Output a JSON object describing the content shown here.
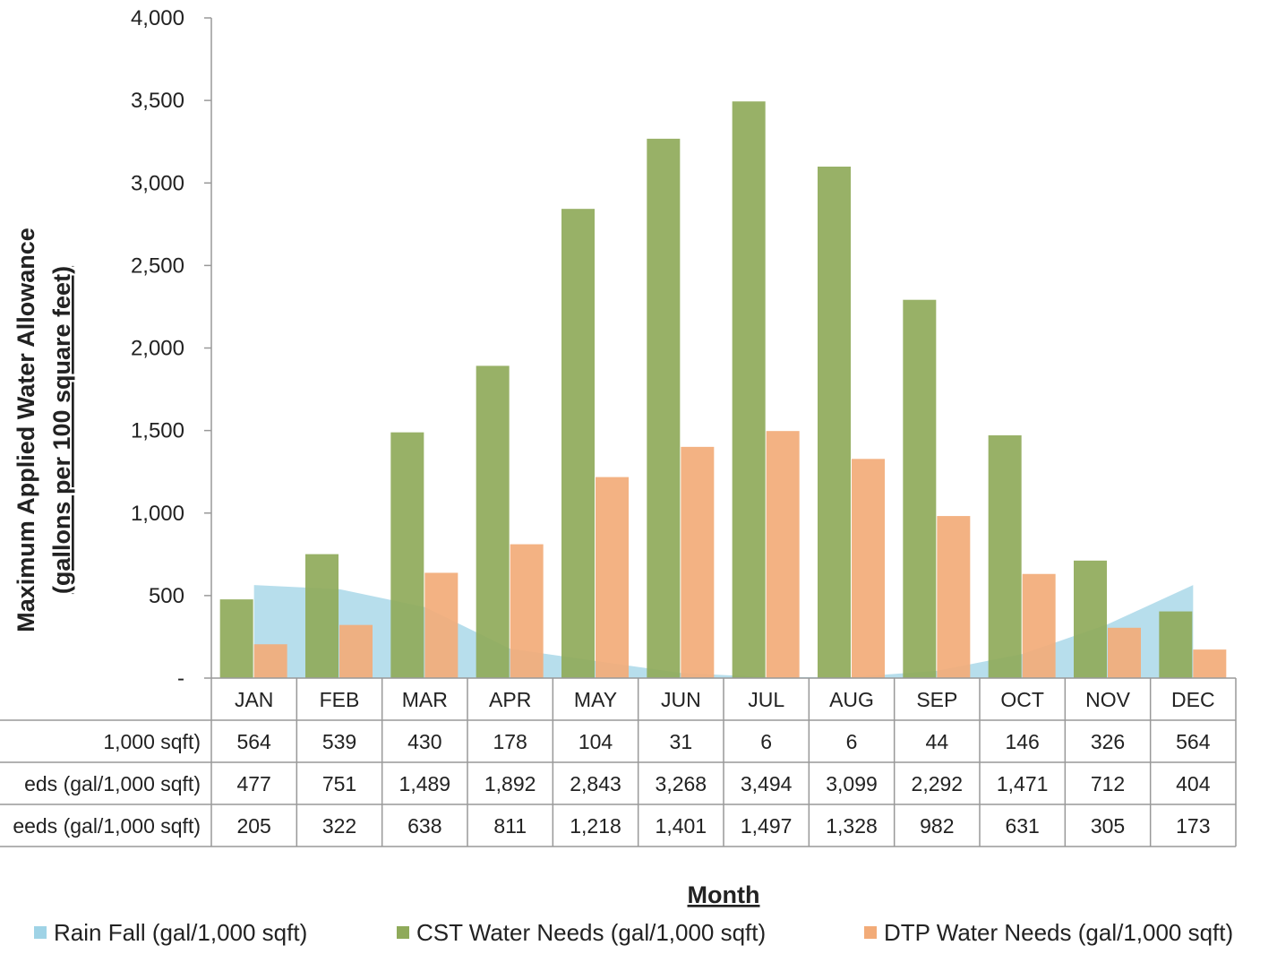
{
  "chart_data": {
    "type": "bar",
    "ylabel_line1": "Maximum Applied Water Allowance",
    "ylabel_line2": "(gallons per 100 square feet)",
    "xlabel": "Month",
    "ylim": [
      0,
      4000
    ],
    "y_ticks": [
      {
        "value": 4000,
        "label": "4,000"
      },
      {
        "value": 3500,
        "label": "3,500"
      },
      {
        "value": 3000,
        "label": "3,000"
      },
      {
        "value": 2500,
        "label": "2,500"
      },
      {
        "value": 2000,
        "label": "2,000"
      },
      {
        "value": 1500,
        "label": "1,500"
      },
      {
        "value": 1000,
        "label": "1,000"
      },
      {
        "value": 500,
        "label": "500"
      },
      {
        "value": 0,
        "label": "-"
      }
    ],
    "grid": false,
    "legend_position": "bottom",
    "categories": [
      "JAN",
      "FEB",
      "MAR",
      "APR",
      "MAY",
      "JUN",
      "JUL",
      "AUG",
      "SEP",
      "OCT",
      "NOV",
      "DEC"
    ],
    "series": [
      {
        "name": "Rain Fall (gal/1,000 sqft)",
        "table_label": "1,000 sqft)",
        "kind": "area",
        "color": "#9fd3e6",
        "values": [
          564,
          539,
          430,
          178,
          104,
          31,
          6,
          6,
          44,
          146,
          326,
          564
        ],
        "labels": [
          "564",
          "539",
          "430",
          "178",
          "104",
          "31",
          "6",
          "6",
          "44",
          "146",
          "326",
          "564"
        ]
      },
      {
        "name": "CST Water Needs (gal/1,000 sqft)",
        "table_label": "eds (gal/1,000 sqft)",
        "kind": "bar",
        "color": "#8faa5a",
        "values": [
          477,
          751,
          1489,
          1892,
          2843,
          3268,
          3494,
          3099,
          2292,
          1471,
          712,
          404
        ],
        "labels": [
          "477",
          "751",
          "1,489",
          "1,892",
          "2,843",
          "3,268",
          "3,494",
          "3,099",
          "2,292",
          "1,471",
          "712",
          "404"
        ]
      },
      {
        "name": "DTP Water Needs (gal/1,000 sqft)",
        "table_label": "eeds (gal/1,000 sqft)",
        "kind": "bar",
        "color": "#f2ab78",
        "values": [
          205,
          322,
          638,
          811,
          1218,
          1401,
          1497,
          1328,
          982,
          631,
          305,
          173
        ],
        "labels": [
          "205",
          "322",
          "638",
          "811",
          "1,218",
          "1,401",
          "1,497",
          "1,328",
          "982",
          "631",
          "305",
          "173"
        ]
      }
    ]
  }
}
